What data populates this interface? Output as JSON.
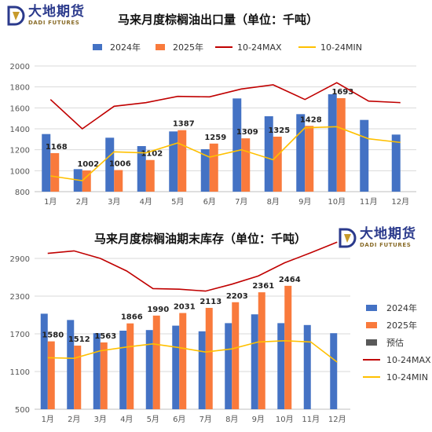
{
  "logo": {
    "cn": "大地期货",
    "en": "DADI FUTURES"
  },
  "colors": {
    "y2024": "#4472C4",
    "y2025": "#F97A3C",
    "forecast": "#595959",
    "max": "#C00000",
    "min": "#FFC000",
    "grid": "#d9d9d9"
  },
  "chart_data": [
    {
      "type": "bar",
      "title": "马来月度棕榈油出口量（单位：千吨）",
      "categories": [
        "1月",
        "2月",
        "3月",
        "4月",
        "5月",
        "6月",
        "7月",
        "8月",
        "9月",
        "10月",
        "11月",
        "12月"
      ],
      "ylim": [
        800,
        2000
      ],
      "yticks": [
        800,
        1000,
        1200,
        1400,
        1600,
        1800,
        2000
      ],
      "legend_position": "top",
      "series": [
        {
          "name": "2024年",
          "kind": "bar",
          "values": [
            1350,
            1015,
            1315,
            1235,
            1375,
            1205,
            1690,
            1520,
            1540,
            1730,
            1485,
            1345
          ]
        },
        {
          "name": "2025年",
          "kind": "bar",
          "values": [
            1168,
            1002,
            1006,
            1102,
            1387,
            1259,
            1309,
            1325,
            1428,
            1693,
            null,
            null
          ]
        },
        {
          "name": "10-24MAX",
          "kind": "line",
          "values": [
            1680,
            1400,
            1615,
            1650,
            1710,
            1705,
            1780,
            1820,
            1680,
            1840,
            1665,
            1650
          ]
        },
        {
          "name": "10-24MIN",
          "kind": "line",
          "values": [
            950,
            905,
            1180,
            1170,
            1265,
            1130,
            1200,
            1105,
            1410,
            1420,
            1305,
            1270
          ]
        }
      ],
      "data_labels": [
        "1168",
        "1002",
        "1006",
        "1102",
        "1387",
        "1259",
        "1309",
        "1325",
        "1428",
        "1693"
      ]
    },
    {
      "type": "bar",
      "title": "马来月度棕榈油期末库存（单位：千吨）",
      "categories": [
        "1月",
        "2月",
        "3月",
        "4月",
        "5月",
        "6月",
        "7月",
        "8月",
        "9月",
        "10月",
        "11月",
        "12月"
      ],
      "ylim": [
        500,
        3200
      ],
      "yticks": [
        500,
        1100,
        1700,
        2300,
        2900
      ],
      "legend_position": "right",
      "series": [
        {
          "name": "2024年",
          "kind": "bar",
          "values": [
            2020,
            1920,
            1710,
            1750,
            1760,
            1830,
            1740,
            1870,
            2010,
            1870,
            1840,
            1710
          ]
        },
        {
          "name": "2025年",
          "kind": "bar",
          "values": [
            1580,
            1512,
            1563,
            1866,
            1990,
            2031,
            2113,
            2203,
            2361,
            2464,
            null,
            null
          ]
        },
        {
          "name": "预估",
          "kind": "bar",
          "values": [
            null,
            null,
            null,
            null,
            null,
            null,
            null,
            null,
            null,
            null,
            null,
            null
          ]
        },
        {
          "name": "10-24MAX",
          "kind": "line",
          "values": [
            2980,
            3020,
            2900,
            2700,
            2420,
            2410,
            2380,
            2490,
            2620,
            2830,
            2990,
            3160
          ]
        },
        {
          "name": "10-24MIN",
          "kind": "line",
          "values": [
            1320,
            1310,
            1430,
            1490,
            1540,
            1480,
            1410,
            1460,
            1570,
            1590,
            1570,
            1250
          ]
        }
      ],
      "data_labels": [
        "1580",
        "1512",
        "1563",
        "1866",
        "1990",
        "2031",
        "2113",
        "2203",
        "2361",
        "2464"
      ]
    }
  ]
}
